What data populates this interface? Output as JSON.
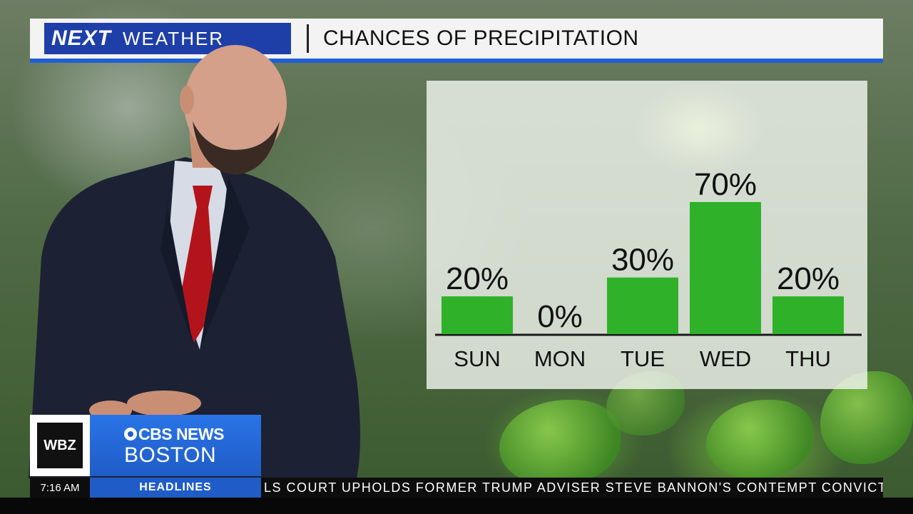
{
  "header": {
    "logo_next": "NEXT",
    "logo_weather": "WEATHER",
    "title": "CHANCES OF PRECIPITATION"
  },
  "colors": {
    "bar": "#2fb12a",
    "header_blue": "#1f5fd6",
    "logo_blue": "#1f3fa8",
    "station_blue": "#1f5cc8"
  },
  "chart_data": {
    "type": "bar",
    "categories": [
      "SUN",
      "MON",
      "TUE",
      "WED",
      "THU"
    ],
    "values": [
      20,
      0,
      30,
      70,
      20
    ],
    "data_labels": [
      "20%",
      "0%",
      "30%",
      "70%",
      "20%"
    ],
    "unit": "%",
    "ylim": [
      0,
      70
    ],
    "grid": false,
    "legend": "none"
  },
  "bug": {
    "station": "WBZ",
    "network": "CBS NEWS",
    "city": "BOSTON"
  },
  "ticker": {
    "time": "7:16 AM",
    "section": "HEADLINES",
    "crawl": "LS COURT UPHOLDS FORMER TRUMP ADVISER STEVE BANNON'S CONTEMPT CONVICTIO"
  }
}
